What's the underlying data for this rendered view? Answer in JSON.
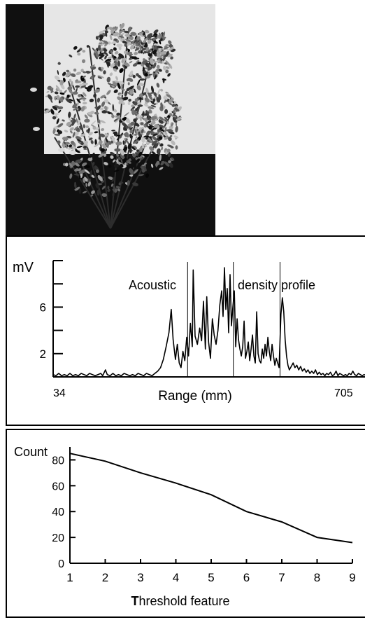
{
  "photo": {
    "subject": "shrub-photo",
    "background_color": "#0d0d0d",
    "sky_color": "#e8e8e8"
  },
  "chart_data": [
    {
      "type": "line",
      "title": "",
      "annotation_left": "Acoustic",
      "annotation_right": "density profile",
      "ylabel": "mV",
      "xlabel": "Range (mm)",
      "x_tick_left": "34",
      "x_tick_right": "705",
      "xlim": [
        34,
        705
      ],
      "ylim": [
        0,
        10
      ],
      "y_tick_labels": [
        "2",
        "6"
      ],
      "y_tick_values": [
        2,
        6
      ],
      "y_minor_ticks": [
        0,
        2,
        4,
        6,
        8,
        10
      ],
      "grid": false,
      "series": [
        {
          "color": "#000000",
          "points": [
            [
              34,
              0.2
            ],
            [
              40,
              0.1
            ],
            [
              46,
              0.3
            ],
            [
              52,
              0.1
            ],
            [
              58,
              0.2
            ],
            [
              64,
              0.1
            ],
            [
              70,
              0.3
            ],
            [
              76,
              0.1
            ],
            [
              82,
              0.2
            ],
            [
              88,
              0.1
            ],
            [
              94,
              0.3
            ],
            [
              100,
              0.2
            ],
            [
              106,
              0.1
            ],
            [
              112,
              0.3
            ],
            [
              118,
              0.2
            ],
            [
              124,
              0.1
            ],
            [
              130,
              0.2
            ],
            [
              136,
              0.3
            ],
            [
              140,
              0.1
            ],
            [
              146,
              0.6
            ],
            [
              150,
              0.2
            ],
            [
              156,
              0.1
            ],
            [
              162,
              0.3
            ],
            [
              168,
              0.1
            ],
            [
              174,
              0.2
            ],
            [
              180,
              0.1
            ],
            [
              186,
              0.3
            ],
            [
              192,
              0.2
            ],
            [
              198,
              0.1
            ],
            [
              204,
              0.2
            ],
            [
              210,
              0.1
            ],
            [
              216,
              0.3
            ],
            [
              222,
              0.2
            ],
            [
              228,
              0.1
            ],
            [
              234,
              0.3
            ],
            [
              240,
              0.2
            ],
            [
              246,
              0.1
            ],
            [
              252,
              0.3
            ],
            [
              258,
              0.5
            ],
            [
              264,
              0.8
            ],
            [
              270,
              1.5
            ],
            [
              276,
              2.6
            ],
            [
              282,
              3.8
            ],
            [
              287,
              5.8
            ],
            [
              291,
              3.2
            ],
            [
              296,
              1.5
            ],
            [
              300,
              2.8
            ],
            [
              304,
              1.2
            ],
            [
              308,
              0.8
            ],
            [
              312,
              2.2
            ],
            [
              316,
              1.4
            ],
            [
              320,
              3.4
            ],
            [
              324,
              1.8
            ],
            [
              328,
              4.6
            ],
            [
              332,
              2.6
            ],
            [
              334,
              9.2
            ],
            [
              338,
              3.5
            ],
            [
              343,
              2.8
            ],
            [
              348,
              4.2
            ],
            [
              352,
              3.1
            ],
            [
              356,
              6.5
            ],
            [
              360,
              2.4
            ],
            [
              363,
              6.9
            ],
            [
              367,
              3.0
            ],
            [
              371,
              1.6
            ],
            [
              375,
              5.0
            ],
            [
              379,
              3.6
            ],
            [
              383,
              2.8
            ],
            [
              387,
              4.0
            ],
            [
              391,
              6.2
            ],
            [
              395,
              7.4
            ],
            [
              398,
              5.2
            ],
            [
              401,
              9.4
            ],
            [
              404,
              5.8
            ],
            [
              407,
              7.6
            ],
            [
              410,
              3.8
            ],
            [
              413,
              8.8
            ],
            [
              416,
              4.4
            ],
            [
              419,
              6.0
            ],
            [
              422,
              7.4
            ],
            [
              425,
              2.6
            ],
            [
              428,
              5.0
            ],
            [
              431,
              3.2
            ],
            [
              434,
              2.4
            ],
            [
              437,
              1.8
            ],
            [
              440,
              2.6
            ],
            [
              443,
              4.8
            ],
            [
              446,
              1.6
            ],
            [
              449,
              2.2
            ],
            [
              452,
              3.0
            ],
            [
              455,
              1.4
            ],
            [
              458,
              2.4
            ],
            [
              461,
              3.6
            ],
            [
              464,
              1.8
            ],
            [
              467,
              1.2
            ],
            [
              470,
              5.6
            ],
            [
              473,
              2.0
            ],
            [
              476,
              1.4
            ],
            [
              479,
              1.2
            ],
            [
              482,
              2.4
            ],
            [
              485,
              1.6
            ],
            [
              488,
              2.8
            ],
            [
              491,
              1.8
            ],
            [
              494,
              3.4
            ],
            [
              497,
              2.2
            ],
            [
              500,
              1.4
            ],
            [
              503,
              2.8
            ],
            [
              506,
              1.8
            ],
            [
              509,
              1.0
            ],
            [
              512,
              1.6
            ],
            [
              515,
              1.2
            ],
            [
              518,
              0.8
            ],
            [
              522,
              5.4
            ],
            [
              525,
              6.8
            ],
            [
              528,
              5.6
            ],
            [
              531,
              3.2
            ],
            [
              534,
              1.8
            ],
            [
              537,
              1.0
            ],
            [
              540,
              0.6
            ],
            [
              544,
              0.9
            ],
            [
              548,
              1.2
            ],
            [
              552,
              0.8
            ],
            [
              556,
              1.0
            ],
            [
              560,
              0.6
            ],
            [
              564,
              0.9
            ],
            [
              568,
              0.5
            ],
            [
              572,
              0.7
            ],
            [
              576,
              0.4
            ],
            [
              580,
              0.6
            ],
            [
              584,
              0.3
            ],
            [
              588,
              0.5
            ],
            [
              592,
              0.3
            ],
            [
              596,
              0.6
            ],
            [
              600,
              0.2
            ],
            [
              604,
              0.4
            ],
            [
              608,
              0.2
            ],
            [
              612,
              0.3
            ],
            [
              616,
              0.1
            ],
            [
              620,
              0.3
            ],
            [
              624,
              0.2
            ],
            [
              628,
              0.4
            ],
            [
              632,
              0.1
            ],
            [
              636,
              0.2
            ],
            [
              640,
              0.5
            ],
            [
              644,
              0.1
            ],
            [
              648,
              0.3
            ],
            [
              652,
              0.2
            ],
            [
              656,
              0.1
            ],
            [
              660,
              0.2
            ],
            [
              664,
              0.1
            ],
            [
              668,
              0.3
            ],
            [
              672,
              0.2
            ],
            [
              676,
              0.5
            ],
            [
              680,
              0.2
            ],
            [
              684,
              0.1
            ],
            [
              688,
              0.3
            ],
            [
              692,
              0.2
            ],
            [
              696,
              0.1
            ],
            [
              700,
              0.2
            ],
            [
              705,
              0.1
            ]
          ]
        }
      ],
      "markers": [
        {
          "x": 322
        },
        {
          "x": 420
        },
        {
          "x": 520
        }
      ]
    },
    {
      "type": "line",
      "title": "",
      "ylabel": "Count",
      "xlabel_first_letter": "T",
      "xlabel_rest": "hreshold feature",
      "xlim": [
        1,
        9
      ],
      "ylim": [
        0,
        90
      ],
      "x_ticks": [
        "1",
        "2",
        "3",
        "4",
        "5",
        "6",
        "7",
        "8",
        "9"
      ],
      "y_ticks": [
        "0",
        "20",
        "40",
        "60",
        "80"
      ],
      "grid": false,
      "series": [
        {
          "color": "#000000",
          "x": [
            1,
            2,
            3,
            4,
            5,
            6,
            7,
            8,
            9
          ],
          "values": [
            85,
            79,
            70,
            62,
            53,
            40,
            32,
            20,
            16
          ]
        }
      ]
    }
  ]
}
